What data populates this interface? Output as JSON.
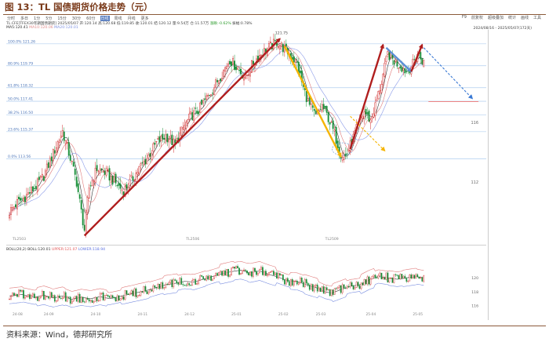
{
  "figure": {
    "title": "图 13：TL 国债期货价格走势（元）",
    "source": "资料来源：Wind，德邦研究所"
  },
  "toolbar": {
    "periods": [
      "分时",
      "多日",
      "1分",
      "5分",
      "15分",
      "30分",
      "60分",
      "日线",
      "周线",
      "月线",
      "更多"
    ],
    "active": "日线",
    "right_tools": [
      "F9",
      "前复权",
      "超级叠加",
      "统计",
      "画线",
      "工具"
    ]
  },
  "info": {
    "security": "TL.CFE[TFEX30年期国债期货]",
    "date_label": "2025/05/07",
    "fields": [
      {
        "label": "开",
        "value": "120.14"
      },
      {
        "label": "高",
        "value": "120.68"
      },
      {
        "label": "低",
        "value": "119.85"
      },
      {
        "label": "收",
        "value": "120.01"
      },
      {
        "label": "结",
        "value": "120.12"
      },
      {
        "label": "量",
        "value": "9.54万"
      },
      {
        "label": "仓",
        "value": "11.57万"
      },
      {
        "label": "涨跌",
        "value": "-0.62%"
      },
      {
        "label": "振幅",
        "value": "0.78%"
      }
    ],
    "ma_legend": [
      {
        "label": "MA5",
        "value": "120.41",
        "color": "#333333"
      },
      {
        "label": "MA10",
        "value": "120.06",
        "color": "#e08a8a"
      },
      {
        "label": "MA20",
        "value": "120.01",
        "color": "#7b8fe0"
      }
    ],
    "boll_legend": [
      {
        "label": "BOLL(20,2)",
        "value": "",
        "color": "#333333"
      },
      {
        "label": "BOLL",
        "value": "120.01",
        "color": "#333333"
      },
      {
        "label": "UPPER",
        "value": "121.07",
        "color": "#e05a5a"
      },
      {
        "label": "LOWER",
        "value": "118.94",
        "color": "#5a6fe0"
      }
    ],
    "range_label": "2024/08/16 - 2025/05/07(172天)"
  },
  "chart_data": [
    {
      "type": "candlestick",
      "title": "",
      "ylim": [
        108.0,
        122.2
      ],
      "xlim_days": [
        0,
        265
      ],
      "y_ticks": [
        {
          "v": 112,
          "label": "112"
        },
        {
          "v": 116,
          "label": "116"
        }
      ],
      "x_ticks": [
        {
          "day": 2,
          "label": "TL2503"
        },
        {
          "day": 113,
          "label": "TL2506"
        },
        {
          "day": 202,
          "label": "TL2509"
        }
      ],
      "fib_levels": [
        {
          "label": "100.0%",
          "value": 121.26
        },
        {
          "label": "80.9%",
          "value": 119.79
        },
        {
          "label": "61.8%",
          "value": 118.32
        },
        {
          "label": "50.0%",
          "value": 117.41
        },
        {
          "label": "38.2%",
          "value": 116.5
        },
        {
          "label": "23.6%",
          "value": 115.37
        },
        {
          "label": "0.0%",
          "value": 113.56
        }
      ],
      "extreme_labels": [
        {
          "day": 48,
          "value": 108.21,
          "label": "108.21"
        },
        {
          "day": 172,
          "value": 121.75,
          "label": "121.75"
        }
      ],
      "anchors": [
        [
          0,
          110.0
        ],
        [
          5,
          110.6
        ],
        [
          10,
          111.0
        ],
        [
          16,
          111.6
        ],
        [
          22,
          112.4
        ],
        [
          28,
          113.9
        ],
        [
          34,
          115.4
        ],
        [
          39,
          113.6
        ],
        [
          43,
          112.0
        ],
        [
          46,
          110.0
        ],
        [
          48,
          108.8
        ],
        [
          51,
          111.6
        ],
        [
          56,
          112.9
        ],
        [
          62,
          112.6
        ],
        [
          68,
          111.9
        ],
        [
          73,
          111.4
        ],
        [
          78,
          112.1
        ],
        [
          83,
          112.9
        ],
        [
          88,
          113.6
        ],
        [
          94,
          114.6
        ],
        [
          100,
          115.1
        ],
        [
          106,
          114.5
        ],
        [
          111,
          115.6
        ],
        [
          116,
          116.4
        ],
        [
          121,
          116.8
        ],
        [
          126,
          117.6
        ],
        [
          131,
          118.4
        ],
        [
          136,
          119.3
        ],
        [
          141,
          120.2
        ],
        [
          146,
          119.6
        ],
        [
          151,
          119.0
        ],
        [
          156,
          120.0
        ],
        [
          161,
          120.6
        ],
        [
          166,
          121.0
        ],
        [
          171,
          121.4
        ],
        [
          176,
          120.9
        ],
        [
          180,
          120.5
        ],
        [
          184,
          119.9
        ],
        [
          188,
          118.3
        ],
        [
          192,
          117.1
        ],
        [
          196,
          116.4
        ],
        [
          200,
          117.1
        ],
        [
          204,
          116.3
        ],
        [
          208,
          115.2
        ],
        [
          212,
          113.9
        ],
        [
          215,
          113.7
        ],
        [
          219,
          114.7
        ],
        [
          223,
          115.8
        ],
        [
          227,
          116.7
        ],
        [
          231,
          116.1
        ],
        [
          234,
          117.1
        ],
        [
          238,
          118.7
        ],
        [
          242,
          120.6
        ],
        [
          246,
          120.1
        ],
        [
          250,
          119.8
        ],
        [
          254,
          119.4
        ],
        [
          258,
          119.9
        ],
        [
          261,
          120.6
        ],
        [
          265,
          120.0
        ]
      ],
      "ma_offsets": [
        {
          "name": "MA5",
          "window": 5,
          "color": "#333333"
        },
        {
          "name": "MA10",
          "window": 10,
          "color": "#e07b7b"
        },
        {
          "name": "MA20",
          "window": 20,
          "color": "#8a9ae8"
        }
      ],
      "trend_arrows": [
        {
          "from": [
            48,
            108.4
          ],
          "to": [
            173,
            121.6
          ],
          "color": "#b01e1e",
          "style": "solid"
        },
        {
          "from": [
            176,
            121.1
          ],
          "to": [
            212,
            113.7
          ],
          "color": "#f5b400",
          "style": "solid"
        },
        {
          "from": [
            218,
            114.2
          ],
          "to": [
            239,
            121.2
          ],
          "color": "#b01e1e",
          "style": "solid"
        },
        {
          "from": [
            241,
            121.0
          ],
          "to": [
            257,
            119.4
          ],
          "color": "#5b8fd6",
          "style": "solid"
        },
        {
          "from": [
            257,
            119.4
          ],
          "to": [
            264,
            121.2
          ],
          "color": "#b01e1e",
          "style": "solid"
        },
        {
          "from": [
            265,
            121.0
          ],
          "to": [
            296,
            117.6
          ],
          "color": "#3a79d4",
          "style": "dashed"
        },
        {
          "from": [
            218,
            116.4
          ],
          "to": [
            240,
            114.1
          ],
          "color": "#f5b400",
          "style": "dashed"
        }
      ],
      "reference_line": {
        "from_day": 268,
        "to_day": 300,
        "value": 117.4,
        "color": "#e33b3b"
      },
      "circle": {
        "day": 213,
        "value": 114.2,
        "color": "#7aa2d8"
      }
    },
    {
      "type": "line",
      "title": "",
      "ylim": [
        115.4,
        123.3
      ],
      "y_ticks": [
        {
          "v": 116,
          "label": "116"
        },
        {
          "v": 118,
          "label": "118"
        },
        {
          "v": 120,
          "label": "120"
        }
      ],
      "x_ticks": [
        {
          "day": 2,
          "label": "24-08"
        },
        {
          "day": 22,
          "label": "24-09"
        },
        {
          "day": 52,
          "label": "24-10"
        },
        {
          "day": 82,
          "label": "24-11"
        },
        {
          "day": 112,
          "label": "24-12"
        },
        {
          "day": 142,
          "label": "25-01"
        },
        {
          "day": 172,
          "label": "25-02"
        },
        {
          "day": 196,
          "label": "25-03"
        },
        {
          "day": 228,
          "label": "25-04"
        },
        {
          "day": 258,
          "label": "25-05"
        }
      ],
      "anchors": [
        [
          0,
          117.4
        ],
        [
          8,
          117.6
        ],
        [
          16,
          117.2
        ],
        [
          22,
          117.5
        ],
        [
          28,
          117.1
        ],
        [
          34,
          117.4
        ],
        [
          40,
          116.9
        ],
        [
          46,
          117.2
        ],
        [
          52,
          117.0
        ],
        [
          58,
          117.3
        ],
        [
          64,
          117.0
        ],
        [
          70,
          117.3
        ],
        [
          76,
          117.6
        ],
        [
          82,
          117.9
        ],
        [
          88,
          118.2
        ],
        [
          94,
          118.6
        ],
        [
          100,
          119.0
        ],
        [
          106,
          119.2
        ],
        [
          112,
          119.5
        ],
        [
          118,
          119.4
        ],
        [
          124,
          119.8
        ],
        [
          130,
          120.2
        ],
        [
          136,
          120.6
        ],
        [
          142,
          120.9
        ],
        [
          148,
          121.1
        ],
        [
          154,
          120.7
        ],
        [
          160,
          121.0
        ],
        [
          166,
          120.5
        ],
        [
          172,
          120.1
        ],
        [
          178,
          119.6
        ],
        [
          184,
          119.5
        ],
        [
          190,
          119.0
        ],
        [
          196,
          118.6
        ],
        [
          202,
          118.0
        ],
        [
          206,
          117.8
        ],
        [
          212,
          118.3
        ],
        [
          218,
          118.8
        ],
        [
          224,
          119.0
        ],
        [
          230,
          119.7
        ],
        [
          236,
          120.2
        ],
        [
          242,
          120.0
        ],
        [
          248,
          119.8
        ],
        [
          254,
          120.0
        ],
        [
          260,
          120.2
        ],
        [
          265,
          120.0
        ]
      ],
      "boll_width": 1.15
    }
  ]
}
